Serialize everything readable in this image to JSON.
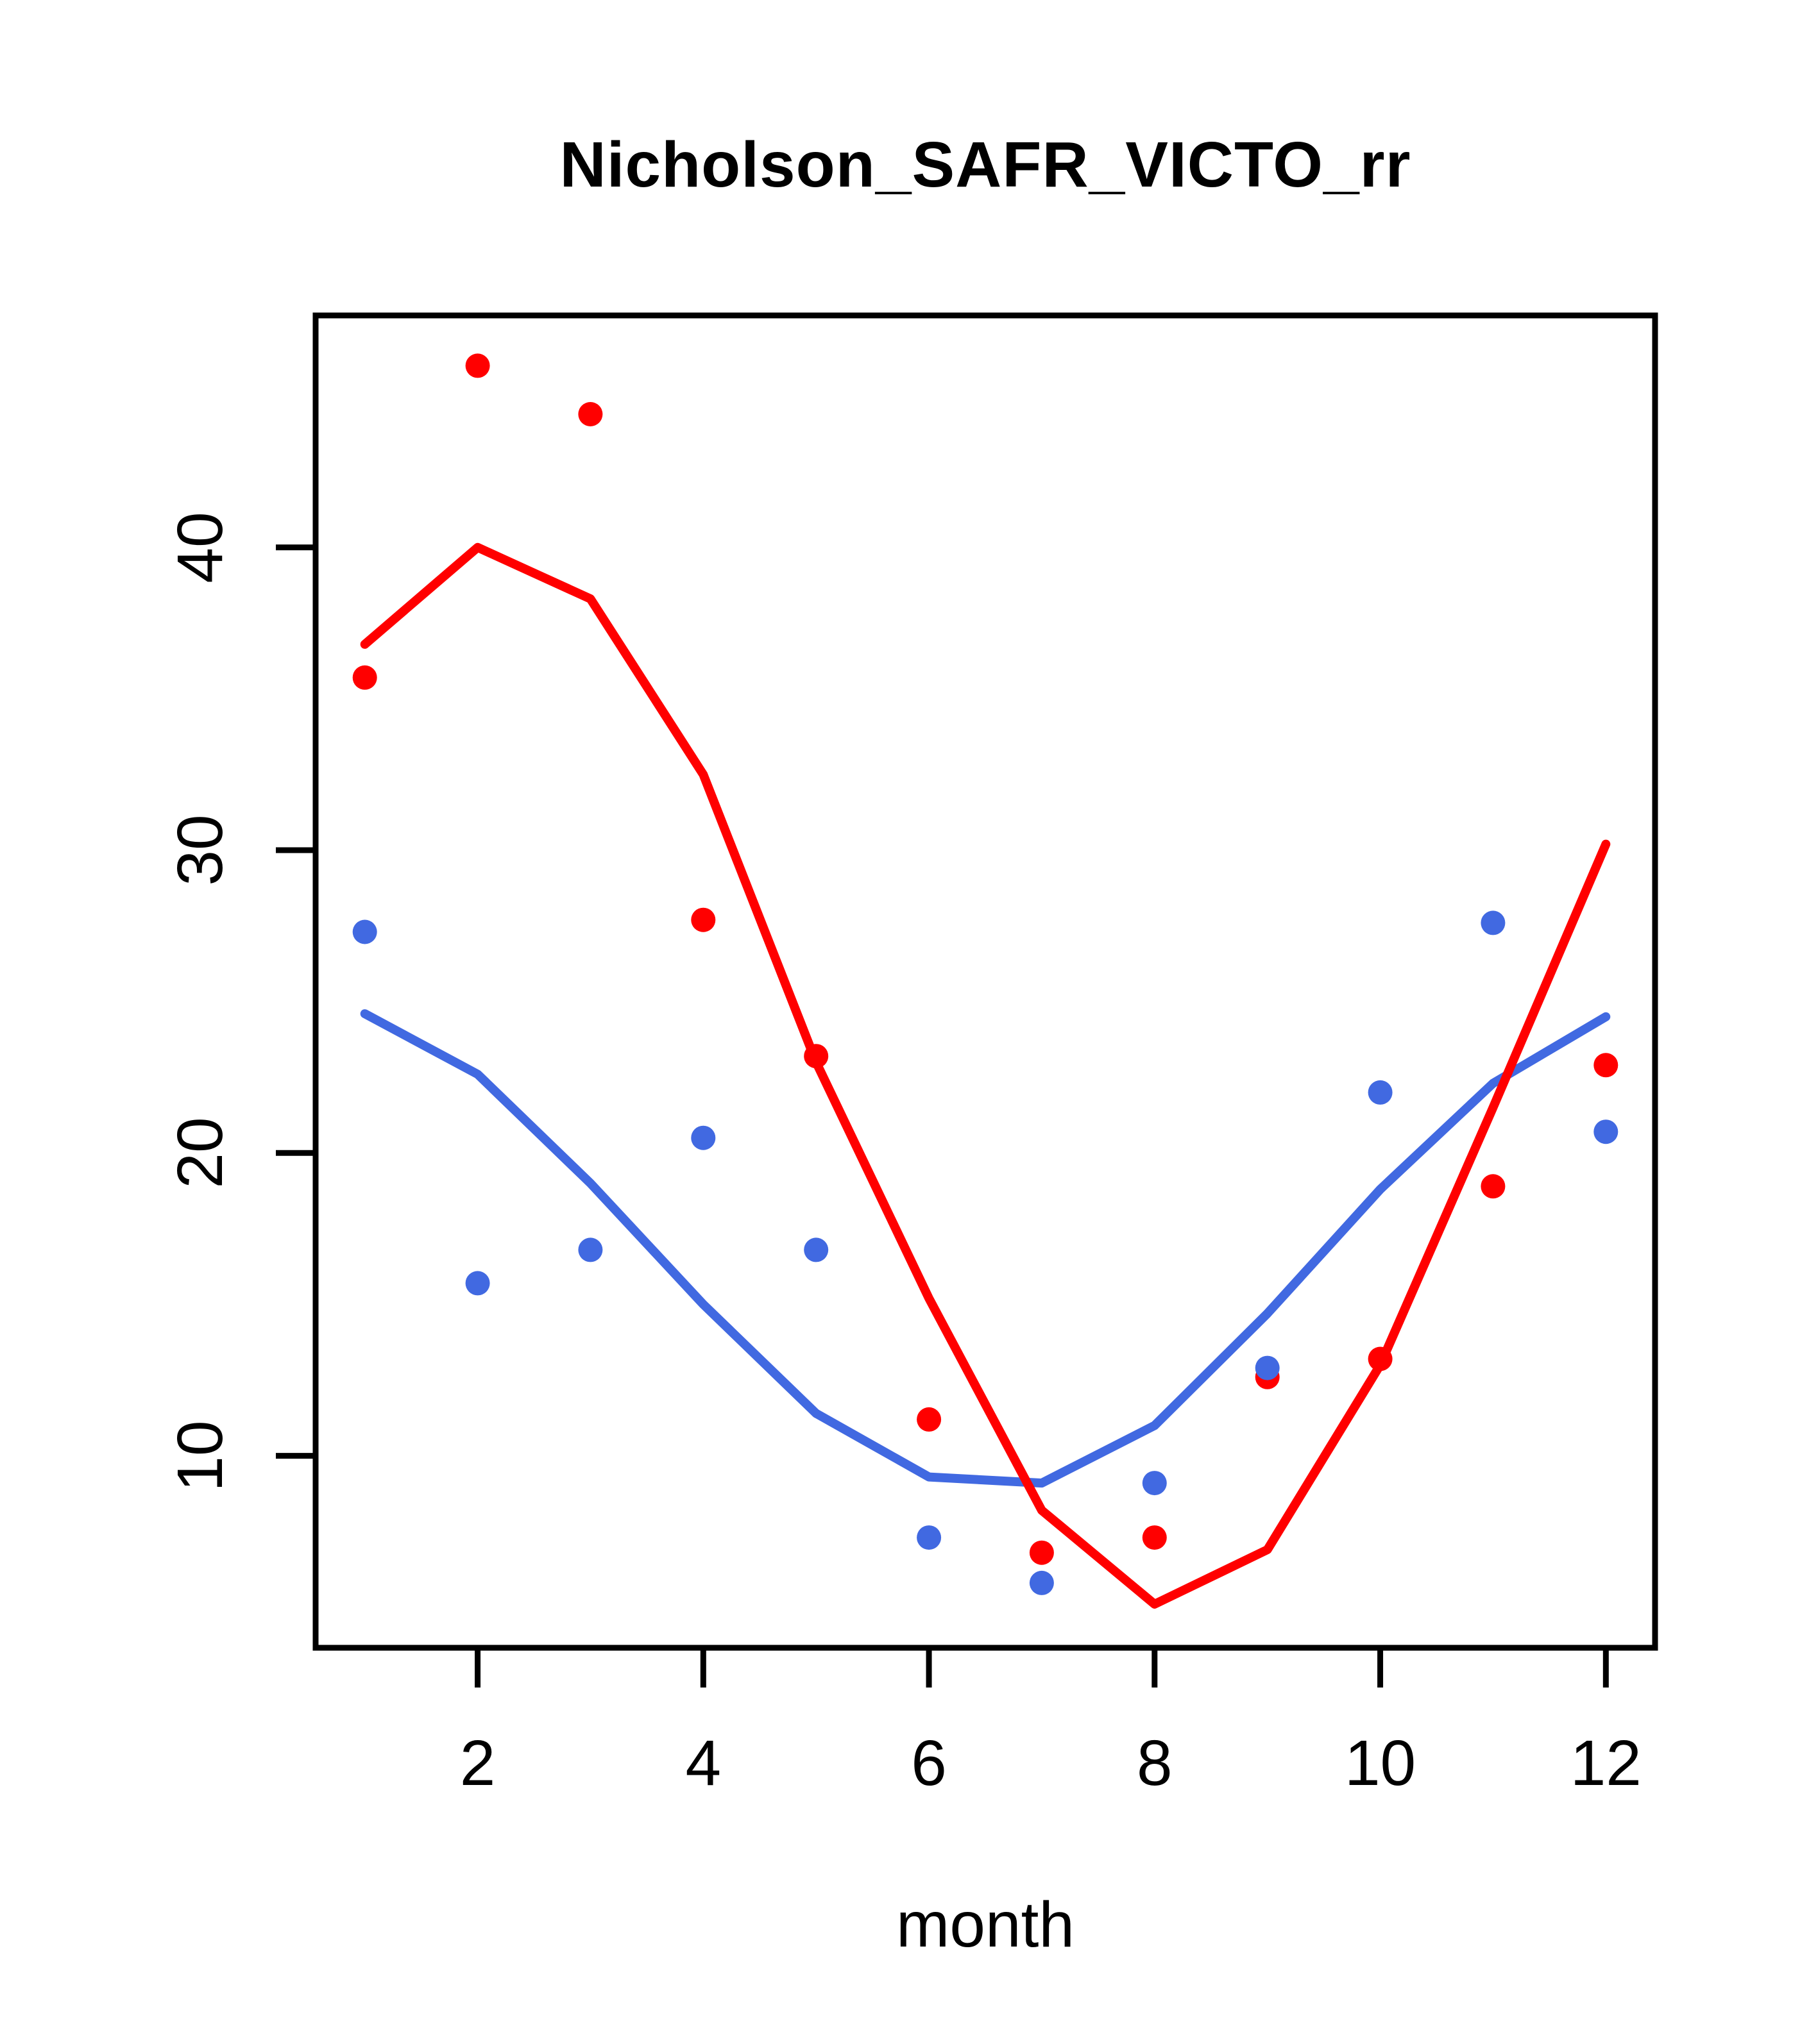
{
  "chart_data": {
    "type": "line+scatter",
    "title": "Nicholson_SAFR_VICTO_rr",
    "xlabel": "month",
    "ylabel": "",
    "x": [
      1,
      2,
      3,
      4,
      5,
      6,
      7,
      8,
      9,
      10,
      11,
      12
    ],
    "series": [
      {
        "name": "blue-line",
        "type": "line",
        "color": "#4169E1",
        "values": [
          24.6,
          22.6,
          19.0,
          15.0,
          11.4,
          9.3,
          9.1,
          11.0,
          14.7,
          18.8,
          22.3,
          24.5
        ]
      },
      {
        "name": "red-line",
        "type": "line",
        "color": "#FF0000",
        "values": [
          36.8,
          40.0,
          38.3,
          32.5,
          23.0,
          15.2,
          8.2,
          5.1,
          6.9,
          13.0,
          21.5,
          30.2
        ]
      },
      {
        "name": "red-points",
        "type": "scatter",
        "color": "#FF0000",
        "values": [
          35.7,
          46.0,
          44.4,
          27.7,
          23.2,
          11.2,
          6.8,
          7.3,
          12.6,
          13.2,
          18.9,
          22.9
        ]
      },
      {
        "name": "blue-points",
        "type": "scatter",
        "color": "#4169E1",
        "values": [
          27.3,
          15.7,
          16.8,
          20.5,
          16.8,
          7.3,
          5.8,
          9.1,
          12.9,
          22.0,
          27.6,
          20.7
        ]
      }
    ],
    "x_ticks": {
      "values": [
        2,
        4,
        6,
        8,
        10,
        12
      ],
      "labels": [
        "2",
        "4",
        "6",
        "8",
        "10",
        "12"
      ]
    },
    "y_ticks": {
      "values": [
        10,
        20,
        30,
        40
      ],
      "labels": [
        "10",
        "20",
        "30",
        "40"
      ]
    },
    "xlim": [
      0.564,
      12.436
    ],
    "ylim": [
      3.66,
      47.66
    ],
    "grid": false,
    "legend": "none",
    "background": "#FFFFFF",
    "axis_color": "#000000"
  }
}
